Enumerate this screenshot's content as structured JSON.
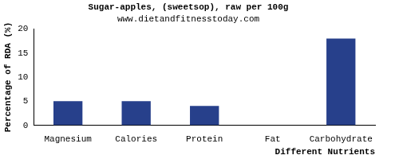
{
  "chart_data": {
    "type": "bar",
    "title": "Sugar-apples, (sweetsop), raw per 100g",
    "subtitle": "www.dietandfitnesstoday.com",
    "xlabel": "Different Nutrients",
    "ylabel": "Percentage of RDA (%)",
    "categories": [
      "Magnesium",
      "Calories",
      "Protein",
      "Fat",
      "Carbohydrate"
    ],
    "values": [
      5,
      5,
      4,
      0,
      18
    ],
    "color": "#27408b",
    "ylim": [
      0,
      20
    ],
    "yticks": [
      0,
      5,
      10,
      15,
      20
    ],
    "grid": false
  }
}
